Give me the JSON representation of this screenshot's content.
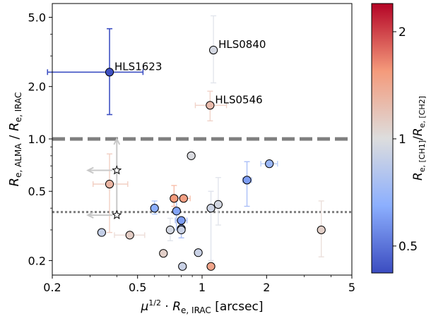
{
  "chart_data": {
    "type": "scatter",
    "x_axis": {
      "scale": "log",
      "range": [
        0.2,
        5
      ],
      "ticks": [
        0.2,
        0.5,
        1,
        2,
        5
      ],
      "tick_labels": [
        "0.2",
        "0.5",
        "1",
        "2",
        "5"
      ],
      "label": "μ1/2 · Re, IRAC [arcsec]"
    },
    "y_axis": {
      "scale": "log",
      "range": [
        0.165,
        6.0
      ],
      "ticks": [
        0.2,
        0.5,
        1.0,
        2.0,
        5.0
      ],
      "tick_labels": [
        "0.2",
        "0.5",
        "1.0",
        "2.0",
        "5.0"
      ],
      "label": "Re, ALMA / Re, IRAC"
    },
    "colorbar": {
      "label": "Re, [CH1]/Re, [CH2]",
      "scale": "log",
      "range": [
        0.42,
        2.4
      ],
      "ticks": [
        0.5,
        1,
        2
      ],
      "tick_labels": [
        "0.5",
        "1",
        "2"
      ],
      "colormap": "coolwarm"
    },
    "reference_lines": [
      {
        "y": 1.0,
        "style": "dashed",
        "color": "#7f7f7f"
      },
      {
        "y": 0.38,
        "style": "dotted",
        "color": "#7f7f7f"
      }
    ],
    "annotations": [
      {
        "text": "HLS1623",
        "x": 0.37,
        "y": 2.42
      },
      {
        "text": "HLS0840",
        "x": 1.13,
        "y": 3.24
      },
      {
        "text": "HLS0546",
        "x": 1.09,
        "y": 1.56
      }
    ],
    "points": [
      {
        "x": 0.37,
        "y": 2.42,
        "c": 0.43,
        "xerr": [
          0.19,
          0.53
        ],
        "yerr": [
          1.38,
          4.3
        ]
      },
      {
        "x": 1.13,
        "y": 3.24,
        "c": 0.95,
        "yerr": [
          2.1,
          5.1
        ]
      },
      {
        "x": 1.09,
        "y": 1.56,
        "c": 1.25,
        "xerr": [
          0.93,
          1.3
        ],
        "yerr": [
          1.27,
          1.88
        ]
      },
      {
        "x": 0.89,
        "y": 0.8,
        "c": 0.98
      },
      {
        "x": 2.06,
        "y": 0.72,
        "c": 0.7,
        "xerr": [
          1.88,
          2.25
        ]
      },
      {
        "x": 1.62,
        "y": 0.58,
        "c": 0.6,
        "yerr": [
          0.41,
          0.74
        ],
        "xerr": [
          1.55,
          1.7
        ]
      },
      {
        "x": 0.37,
        "y": 0.55,
        "c": 1.3,
        "xerr": [
          0.31,
          0.45
        ],
        "yerr": [
          0.29,
          0.82
        ]
      },
      {
        "x": 0.74,
        "y": 0.455,
        "c": 1.55,
        "yerr": [
          0.41,
          0.54
        ]
      },
      {
        "x": 0.82,
        "y": 0.455,
        "c": 1.5,
        "xerr": [
          0.77,
          0.88
        ]
      },
      {
        "x": 1.19,
        "y": 0.42,
        "c": 0.95,
        "yerr": [
          0.32,
          0.6
        ]
      },
      {
        "x": 1.1,
        "y": 0.4,
        "c": 0.92,
        "yerr": [
          0.2,
          0.5
        ]
      },
      {
        "x": 0.6,
        "y": 0.4,
        "c": 0.65,
        "yerr": [
          0.37,
          0.44
        ]
      },
      {
        "x": 0.76,
        "y": 0.385,
        "c": 0.62,
        "yerr": [
          0.3,
          0.46
        ]
      },
      {
        "x": 0.8,
        "y": 0.34,
        "c": 0.6,
        "xerr": [
          0.75,
          0.85
        ]
      },
      {
        "x": 0.8,
        "y": 0.305,
        "c": 0.6,
        "yerr": [
          0.27,
          0.34
        ]
      },
      {
        "x": 0.71,
        "y": 0.3,
        "c": 0.95,
        "yerr": [
          0.26,
          0.35
        ]
      },
      {
        "x": 0.8,
        "y": 0.3,
        "c": 0.9
      },
      {
        "x": 0.34,
        "y": 0.29,
        "c": 0.88
      },
      {
        "x": 0.46,
        "y": 0.28,
        "c": 1.12,
        "xerr": [
          0.39,
          0.54
        ]
      },
      {
        "x": 3.6,
        "y": 0.3,
        "c": 1.1,
        "yerr": [
          0.21,
          0.44
        ]
      },
      {
        "x": 0.66,
        "y": 0.22,
        "c": 1.1
      },
      {
        "x": 0.96,
        "y": 0.222,
        "c": 0.9
      },
      {
        "x": 0.81,
        "y": 0.185,
        "c": 0.9
      },
      {
        "x": 1.1,
        "y": 0.185,
        "c": 1.45
      }
    ],
    "upper_limits": [
      {
        "x": 0.4,
        "y": 0.66,
        "marker": "star"
      },
      {
        "x": 0.4,
        "y": 0.365,
        "marker": "star"
      }
    ],
    "grid": false
  }
}
